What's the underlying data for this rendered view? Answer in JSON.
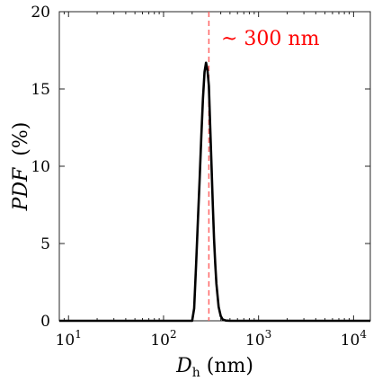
{
  "chart_data": {
    "type": "line",
    "x_scale": "log",
    "xlim": [
      8,
      15000
    ],
    "ylim": [
      0,
      20
    ],
    "yticks": [
      0,
      5,
      10,
      15,
      20
    ],
    "xticks": [
      {
        "value": 10,
        "base": "10",
        "exp": "1"
      },
      {
        "value": 100,
        "base": "10",
        "exp": "2"
      },
      {
        "value": 1000,
        "base": "10",
        "exp": "3"
      },
      {
        "value": 10000,
        "base": "10",
        "exp": "4"
      }
    ],
    "ylabel": {
      "main": "PDF",
      "unit": "(%)"
    },
    "xlabel": {
      "main": "D",
      "sub": "h",
      "unit": "(nm)"
    },
    "grid": false,
    "series": [
      {
        "color": "#000000",
        "x": [
          8,
          100,
          200,
          210,
          220,
          230,
          240,
          250,
          260,
          270,
          280,
          290,
          300,
          310,
          320,
          330,
          340,
          350,
          360,
          380,
          400,
          420,
          450,
          500,
          1000,
          15000
        ],
        "y": [
          0,
          0,
          0,
          0.8,
          3.6,
          6.5,
          9.2,
          12.0,
          14.4,
          16.1,
          16.7,
          16.2,
          15.2,
          12.5,
          10.0,
          7.5,
          5.3,
          3.7,
          2.4,
          0.9,
          0.3,
          0.08,
          0.02,
          0,
          0,
          0
        ]
      }
    ],
    "reference_line": {
      "x": 300,
      "color": "#ff6666",
      "style": "dashed"
    },
    "annotation": {
      "text": "~ 300 nm",
      "color": "#ff0000"
    }
  }
}
